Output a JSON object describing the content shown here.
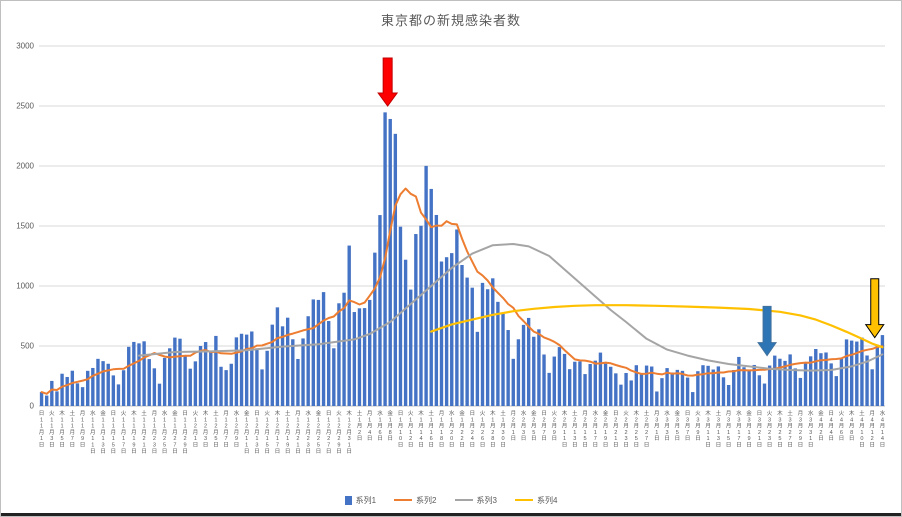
{
  "chart_data": {
    "type": "combo",
    "title": "東京都の新規感染者数",
    "xlabel": "",
    "ylabel": "",
    "ylim": [
      0,
      3000
    ],
    "yticks": [
      0,
      500,
      1000,
      1500,
      2000,
      2500,
      3000
    ],
    "grid": true,
    "legend_position": "bottom",
    "tick_every_days": 2,
    "dow_cycle": [
      "日",
      "月",
      "火",
      "水",
      "木",
      "金",
      "土"
    ],
    "dow_start_index": 0,
    "months": [
      {
        "month": 11,
        "days": 30
      },
      {
        "month": 12,
        "days": 31
      },
      {
        "month": 1,
        "days": 31
      },
      {
        "month": 2,
        "days": 28
      },
      {
        "month": 3,
        "days": 31
      },
      {
        "month": 4,
        "days": 14
      }
    ],
    "colors": {
      "axis_text": "#595959",
      "gridline": "#d9d9d9",
      "axis_line": "#bfbfbf",
      "title_text": "#595959"
    },
    "series": [
      {
        "name": "系列1",
        "type": "bar",
        "color": "#4472c4",
        "values": [
          116,
          87,
          209,
          122,
          269,
          242,
          294,
          189,
          157,
          293,
          317,
          393,
          374,
          352,
          255,
          180,
          298,
          493,
          534,
          522,
          539,
          391,
          314,
          186,
          401,
          481,
          570,
          561,
          418,
          311,
          372,
          500,
          533,
          449,
          584,
          327,
          299,
          352,
          572,
          602,
          595,
          621,
          480,
          305,
          460,
          678,
          822,
          664,
          736,
          556,
          392,
          563,
          748,
          888,
          884,
          949,
          708,
          481,
          856,
          944,
          1337,
          783,
          814,
          816,
          884,
          1278,
          1591,
          2447,
          2392,
          2268,
          1494,
          1219,
          970,
          1433,
          1502,
          2001,
          1809,
          1592,
          1204,
          1240,
          1274,
          1471,
          1175,
          1070,
          986,
          618,
          1026,
          973,
          1064,
          868,
          769,
          633,
          393,
          556,
          676,
          734,
          577,
          639,
          429,
          276,
          412,
          491,
          434,
          307,
          369,
          371,
          266,
          350,
          378,
          445,
          353,
          327,
          272,
          178,
          275,
          213,
          340,
          270,
          337,
          329,
          121,
          232,
          316,
          279,
          301,
          293,
          237,
          116,
          290,
          340,
          335,
          304,
          330,
          239,
          175,
          300,
          409,
          323,
          303,
          342,
          256,
          187,
          337,
          420,
          394,
          376,
          430,
          313,
          234,
          364,
          414,
          475,
          440,
          446,
          355,
          249,
          399,
          555,
          545,
          537,
          570,
          421,
          306,
          510,
          591
        ]
      },
      {
        "name": "系列2",
        "type": "line",
        "color": "#ed7d31",
        "derive": "ma7",
        "source": "系列1"
      },
      {
        "name": "系列3",
        "type": "line",
        "color": "#a5a5a5",
        "points": [
          [
            19,
            420
          ],
          [
            26,
            450
          ],
          [
            33,
            455
          ],
          [
            40,
            465
          ],
          [
            47,
            495
          ],
          [
            54,
            515
          ],
          [
            61,
            555
          ],
          [
            64,
            600
          ],
          [
            68,
            700
          ],
          [
            72,
            850
          ],
          [
            76,
            1000
          ],
          [
            80,
            1150
          ],
          [
            84,
            1270
          ],
          [
            88,
            1340
          ],
          [
            92,
            1350
          ],
          [
            95,
            1330
          ],
          [
            99,
            1250
          ],
          [
            103,
            1100
          ],
          [
            107,
            950
          ],
          [
            111,
            800
          ],
          [
            114,
            700
          ],
          [
            118,
            560
          ],
          [
            122,
            470
          ],
          [
            126,
            420
          ],
          [
            130,
            380
          ],
          [
            134,
            350
          ],
          [
            138,
            330
          ],
          [
            142,
            310
          ],
          [
            146,
            300
          ],
          [
            150,
            295
          ],
          [
            154,
            300
          ],
          [
            158,
            330
          ],
          [
            161,
            370
          ],
          [
            164,
            430
          ]
        ]
      },
      {
        "name": "系列4",
        "type": "line",
        "color": "#ffc000",
        "points": [
          [
            76,
            620
          ],
          [
            80,
            680
          ],
          [
            84,
            720
          ],
          [
            88,
            760
          ],
          [
            92,
            790
          ],
          [
            96,
            810
          ],
          [
            100,
            825
          ],
          [
            104,
            835
          ],
          [
            108,
            840
          ],
          [
            114,
            840
          ],
          [
            120,
            835
          ],
          [
            126,
            828
          ],
          [
            132,
            820
          ],
          [
            138,
            808
          ],
          [
            144,
            785
          ],
          [
            148,
            755
          ],
          [
            151,
            720
          ],
          [
            154,
            672
          ],
          [
            157,
            618
          ],
          [
            160,
            560
          ],
          [
            162,
            520
          ],
          [
            164,
            490
          ]
        ]
      }
    ],
    "annotations": [
      {
        "name": "red-arrow",
        "shape": "block-arrow-down",
        "fill": "#ff0000",
        "stroke": "#c00000",
        "index": 67,
        "value_top": 2900,
        "value_tip": 2500
      },
      {
        "name": "blue-arrow",
        "shape": "block-arrow-down",
        "fill": "#2e75b6",
        "stroke": "#41719c",
        "index": 141,
        "value_top": 830,
        "value_tip": 420
      },
      {
        "name": "yellow-arrow",
        "shape": "block-arrow-down",
        "fill": "#ffc000",
        "stroke": "#000000",
        "index": 162,
        "value_top": 1060,
        "value_tip": 570
      }
    ]
  }
}
